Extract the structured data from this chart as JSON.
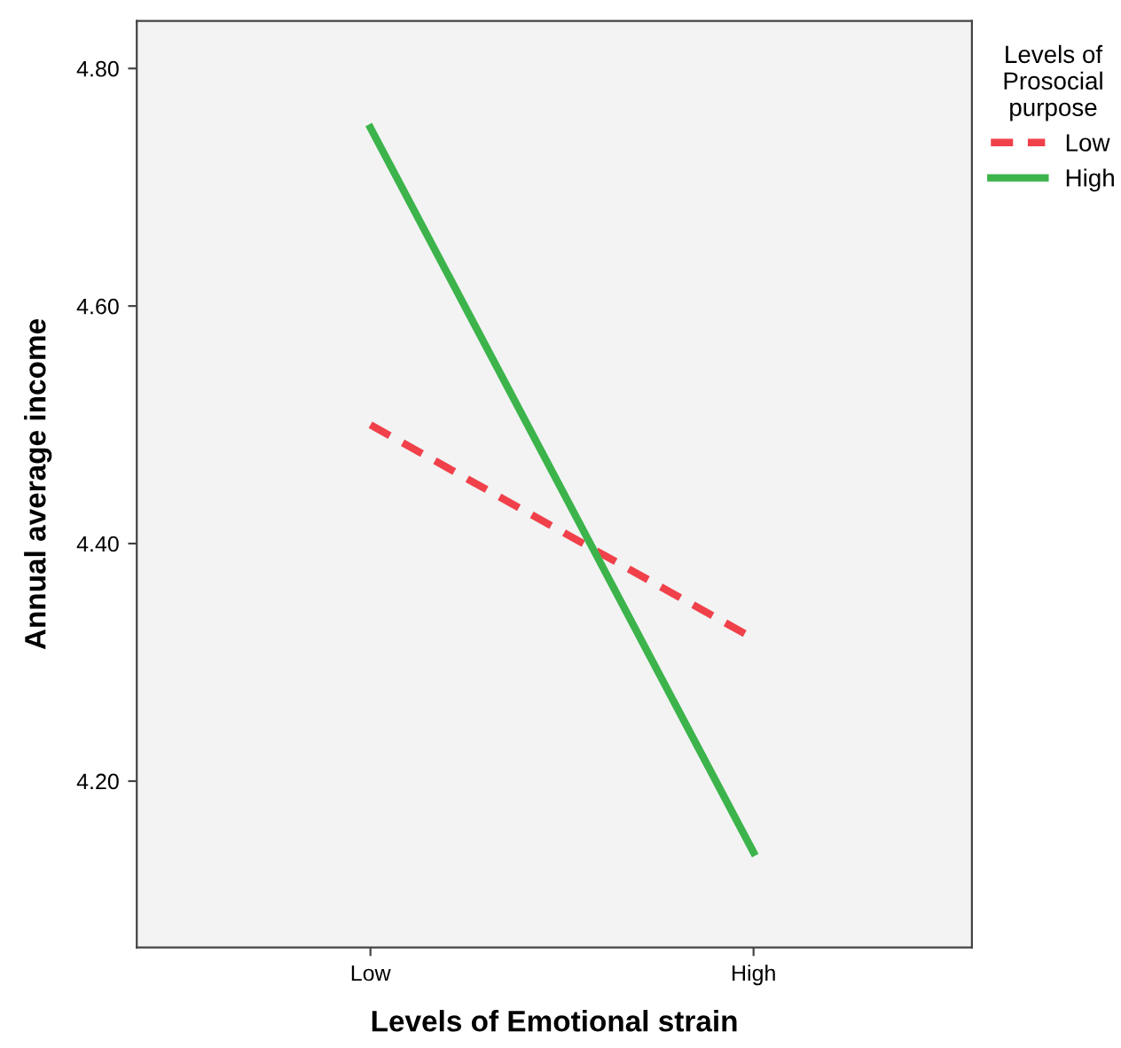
{
  "chart_data": {
    "type": "line",
    "xlabel": "Levels of Emotional strain",
    "ylabel": "Annual average income",
    "categories": [
      "Low",
      "High"
    ],
    "series": [
      {
        "name": "Low",
        "color": "#f0414b",
        "values": [
          4.5,
          4.32
        ],
        "line_style": "dashed"
      },
      {
        "name": "High",
        "color": "#3cb44b",
        "values": [
          4.75,
          4.14
        ],
        "line_style": "solid"
      }
    ],
    "ylim": [
      4.06,
      4.84
    ],
    "yticks": [
      {
        "value": 4.2,
        "label": "4.20"
      },
      {
        "value": 4.4,
        "label": "4.40"
      },
      {
        "value": 4.6,
        "label": "4.60"
      },
      {
        "value": 4.8,
        "label": "4.80"
      }
    ],
    "grid": false,
    "marker": "none",
    "legend": "top right",
    "legend_title": "Levels of\nProsocial\npurpose"
  }
}
